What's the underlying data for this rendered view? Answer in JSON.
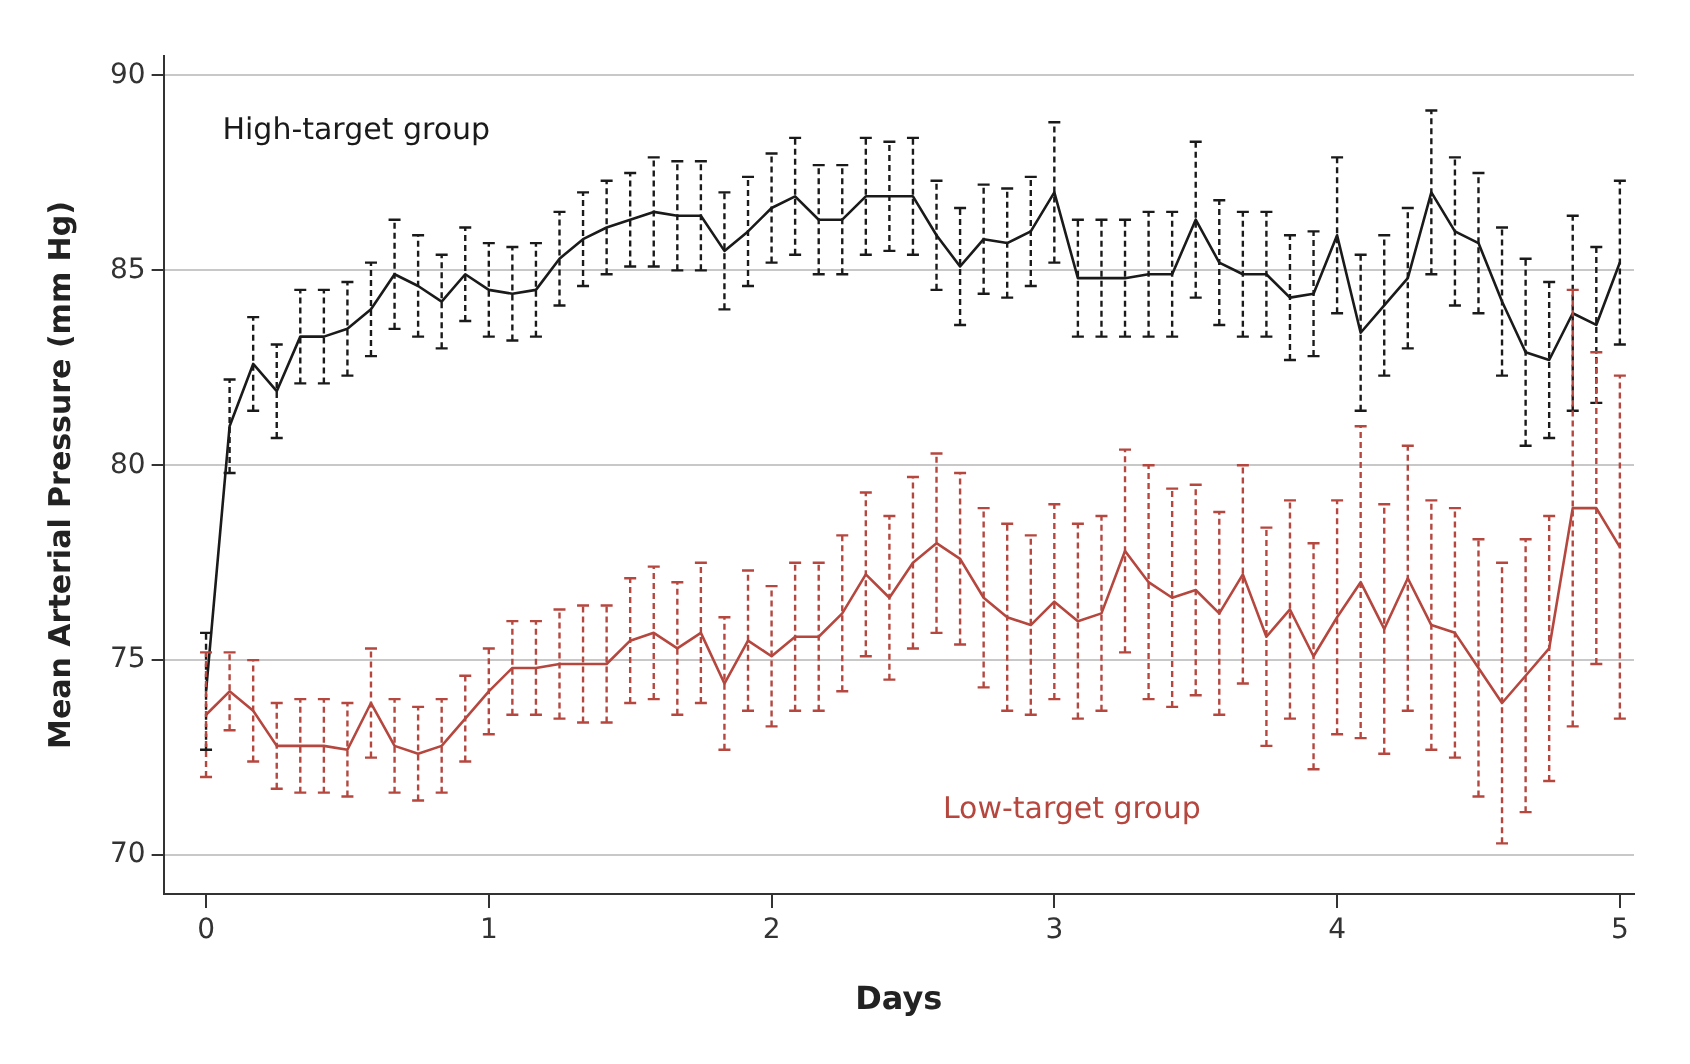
{
  "chart_data": {
    "type": "line",
    "xlabel": "Days",
    "ylabel": "Mean Arterial Pressure (mm Hg)",
    "x": [
      0,
      0.0833,
      0.1667,
      0.25,
      0.3333,
      0.4167,
      0.5,
      0.5833,
      0.6667,
      0.75,
      0.8333,
      0.9167,
      1,
      1.0833,
      1.1667,
      1.25,
      1.3333,
      1.4167,
      1.5,
      1.5833,
      1.6667,
      1.75,
      1.8333,
      1.9167,
      2,
      2.0833,
      2.1667,
      2.25,
      2.3333,
      2.4167,
      2.5,
      2.5833,
      2.6667,
      2.75,
      2.8333,
      2.9167,
      3,
      3.0833,
      3.1667,
      3.25,
      3.3333,
      3.4167,
      3.5,
      3.5833,
      3.6667,
      3.75,
      3.8333,
      3.9167,
      4,
      4.0833,
      4.1667,
      4.25,
      4.3333,
      4.4167,
      4.5,
      4.5833,
      4.6667,
      4.75,
      4.8333,
      4.9167,
      5
    ],
    "series": [
      {
        "name": "High-target group",
        "color": "#1a1a1a",
        "values": [
          74.2,
          81.0,
          82.6,
          81.9,
          83.3,
          83.3,
          83.5,
          84.0,
          84.9,
          84.6,
          84.2,
          84.9,
          84.5,
          84.4,
          84.5,
          85.3,
          85.8,
          86.1,
          86.3,
          86.5,
          86.4,
          86.4,
          85.5,
          86.0,
          86.6,
          86.9,
          86.3,
          86.3,
          86.9,
          86.9,
          86.9,
          85.9,
          85.1,
          85.8,
          85.7,
          86.0,
          87.0,
          84.8,
          84.8,
          84.8,
          84.9,
          84.9,
          86.3,
          85.2,
          84.9,
          84.9,
          84.3,
          84.4,
          85.9,
          83.4,
          84.1,
          84.8,
          87.0,
          86.0,
          85.7,
          84.2,
          82.9,
          82.7,
          83.9,
          83.6,
          85.2
        ],
        "errors": [
          1.5,
          1.2,
          1.2,
          1.2,
          1.2,
          1.2,
          1.2,
          1.2,
          1.4,
          1.3,
          1.2,
          1.2,
          1.2,
          1.2,
          1.2,
          1.2,
          1.2,
          1.2,
          1.2,
          1.4,
          1.4,
          1.4,
          1.5,
          1.4,
          1.4,
          1.5,
          1.4,
          1.4,
          1.5,
          1.4,
          1.5,
          1.4,
          1.5,
          1.4,
          1.4,
          1.4,
          1.8,
          1.5,
          1.5,
          1.5,
          1.6,
          1.6,
          2.0,
          1.6,
          1.6,
          1.6,
          1.6,
          1.6,
          2.0,
          2.0,
          1.8,
          1.8,
          2.1,
          1.9,
          1.8,
          1.9,
          2.4,
          2.0,
          2.5,
          2.0,
          2.1
        ]
      },
      {
        "name": "Low-target group",
        "color": "#b5473f",
        "values": [
          73.6,
          74.2,
          73.7,
          72.8,
          72.8,
          72.8,
          72.7,
          73.9,
          72.8,
          72.6,
          72.8,
          73.5,
          74.2,
          74.8,
          74.8,
          74.9,
          74.9,
          74.9,
          75.5,
          75.7,
          75.3,
          75.7,
          74.4,
          75.5,
          75.1,
          75.6,
          75.6,
          76.2,
          77.2,
          76.6,
          77.5,
          78.0,
          77.6,
          76.6,
          76.1,
          75.9,
          76.5,
          76.0,
          76.2,
          77.8,
          77.0,
          76.6,
          76.8,
          76.2,
          77.2,
          75.6,
          76.3,
          75.1,
          76.1,
          77.0,
          75.8,
          77.1,
          75.9,
          75.7,
          74.8,
          73.9,
          74.6,
          75.3,
          78.9,
          78.9,
          77.9
        ],
        "errors": [
          1.6,
          1.0,
          1.3,
          1.1,
          1.2,
          1.2,
          1.2,
          1.4,
          1.2,
          1.2,
          1.2,
          1.1,
          1.1,
          1.2,
          1.2,
          1.4,
          1.5,
          1.5,
          1.6,
          1.7,
          1.7,
          1.8,
          1.7,
          1.8,
          1.8,
          1.9,
          1.9,
          2.0,
          2.1,
          2.1,
          2.2,
          2.3,
          2.2,
          2.3,
          2.4,
          2.3,
          2.5,
          2.5,
          2.5,
          2.6,
          3.0,
          2.8,
          2.7,
          2.6,
          2.8,
          2.8,
          2.8,
          2.9,
          3.0,
          4.0,
          3.2,
          3.4,
          3.2,
          3.2,
          3.3,
          3.6,
          3.5,
          3.4,
          5.6,
          4.0,
          4.4
        ]
      }
    ],
    "xlim": [
      -0.15,
      5.05
    ],
    "xticks": [
      0,
      1,
      2,
      3,
      4,
      5
    ],
    "ylim": [
      69,
      90.5
    ],
    "yticks": [
      70,
      75,
      80,
      85,
      90
    ],
    "grid": "y",
    "legend": false,
    "marker": "none",
    "line_style": "solid"
  }
}
